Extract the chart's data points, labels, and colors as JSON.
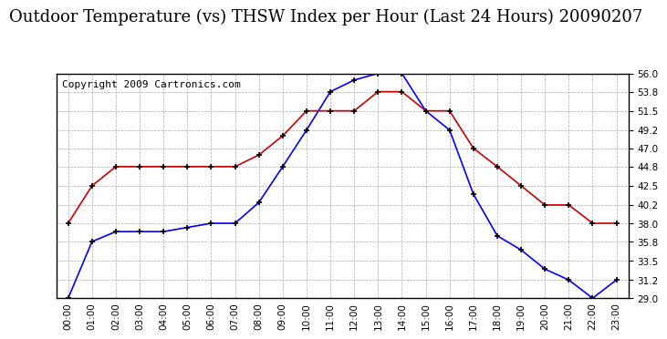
{
  "title": "Outdoor Temperature (vs) THSW Index per Hour (Last 24 Hours) 20090207",
  "copyright": "Copyright 2009 Cartronics.com",
  "hours": [
    "00:00",
    "01:00",
    "02:00",
    "03:00",
    "04:00",
    "05:00",
    "06:00",
    "07:00",
    "08:00",
    "09:00",
    "10:00",
    "11:00",
    "12:00",
    "13:00",
    "14:00",
    "15:00",
    "16:00",
    "17:00",
    "18:00",
    "19:00",
    "20:00",
    "21:00",
    "22:00",
    "23:00"
  ],
  "blue_data": [
    29.0,
    35.8,
    37.0,
    37.0,
    37.0,
    37.5,
    38.0,
    38.0,
    40.5,
    44.8,
    49.2,
    53.8,
    55.2,
    56.0,
    56.0,
    51.5,
    49.2,
    41.5,
    36.5,
    34.8,
    32.5,
    31.2,
    29.0,
    31.2
  ],
  "red_data": [
    38.0,
    42.5,
    44.8,
    44.8,
    44.8,
    44.8,
    44.8,
    44.8,
    46.2,
    48.5,
    51.5,
    51.5,
    51.5,
    53.8,
    53.8,
    51.5,
    51.5,
    47.0,
    44.8,
    42.5,
    40.2,
    40.2,
    38.0,
    38.0
  ],
  "blue_color": "#0000ff",
  "red_color": "#cc0000",
  "bg_color": "#ffffff",
  "grid_color": "#aaaaaa",
  "ylim_min": 29.0,
  "ylim_max": 56.0,
  "yticks": [
    29.0,
    31.2,
    33.5,
    35.8,
    38.0,
    40.2,
    42.5,
    44.8,
    47.0,
    49.2,
    51.5,
    53.8,
    56.0
  ],
  "title_fontsize": 13,
  "copyright_fontsize": 8
}
